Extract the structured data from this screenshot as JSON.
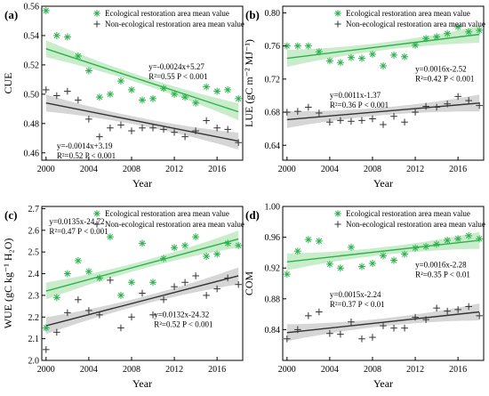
{
  "chart_data": [
    {
      "type": "scatter",
      "panel": "(a)",
      "xlabel": "Year",
      "ylabel": "CUE",
      "xlim": [
        1999.6,
        2018.4
      ],
      "ylim": [
        0.455,
        0.56
      ],
      "xticks": [
        2000,
        2004,
        2008,
        2012,
        2016
      ],
      "yticks": [
        0.46,
        0.48,
        0.5,
        0.52,
        0.54,
        0.56
      ],
      "tick_decimals": 2,
      "legend_position": "top-right",
      "series": [
        {
          "name": "Ecological restoration area mean value",
          "marker": "asterisk",
          "x": [
            2000,
            2001,
            2002,
            2003,
            2004,
            2005,
            2006,
            2007,
            2008,
            2009,
            2010,
            2011,
            2012,
            2013,
            2014,
            2015,
            2016,
            2017,
            2018
          ],
          "y": [
            0.557,
            0.54,
            0.539,
            0.526,
            0.516,
            0.498,
            0.5,
            0.509,
            0.503,
            0.496,
            0.497,
            0.504,
            0.5,
            0.498,
            0.494,
            0.505,
            0.502,
            0.503,
            0.497
          ],
          "fit_label": [
            "y=-0.0024x+5.27",
            "R²=0.55  P < 0.001"
          ],
          "fit_range": [
            2000,
            2018
          ],
          "fit_y": [
            0.531,
            0.488
          ]
        },
        {
          "name": "Non-ecological restoration area mean value",
          "marker": "plus",
          "x": [
            2000,
            2001,
            2002,
            2003,
            2004,
            2005,
            2006,
            2007,
            2008,
            2009,
            2010,
            2011,
            2012,
            2013,
            2014,
            2015,
            2016,
            2017,
            2018
          ],
          "y": [
            0.503,
            0.499,
            0.502,
            0.496,
            0.483,
            0.471,
            0.477,
            0.479,
            0.475,
            0.477,
            0.477,
            0.476,
            0.474,
            0.471,
            0.475,
            0.482,
            0.477,
            0.476,
            0.467
          ],
          "fit_label": [
            "y=-0.0014x+3.19",
            "R²=0.52  P < 0.001"
          ],
          "fit_range": [
            2000,
            2018
          ],
          "fit_y": [
            0.494,
            0.468
          ]
        }
      ],
      "eq_positions": [
        [
          2009.6,
          0.517
        ],
        [
          2001.0,
          0.463
        ]
      ]
    },
    {
      "type": "scatter",
      "panel": "(b)",
      "xlabel": "Year",
      "ylabel": "LUE (gC m⁻² MJ⁻¹)",
      "xlim": [
        1999.6,
        2018.4
      ],
      "ylim": [
        0.622,
        0.808
      ],
      "xticks": [
        2000,
        2004,
        2008,
        2012,
        2016
      ],
      "yticks": [
        0.64,
        0.68,
        0.72,
        0.76,
        0.8
      ],
      "tick_decimals": 2,
      "legend_position": "top-right",
      "series": [
        {
          "name": "Ecological restoration area mean value",
          "marker": "asterisk",
          "x": [
            2000,
            2001,
            2002,
            2003,
            2004,
            2005,
            2006,
            2007,
            2008,
            2009,
            2010,
            2011,
            2012,
            2013,
            2014,
            2015,
            2016,
            2017,
            2018
          ],
          "y": [
            0.76,
            0.76,
            0.76,
            0.753,
            0.742,
            0.74,
            0.746,
            0.745,
            0.75,
            0.736,
            0.749,
            0.747,
            0.761,
            0.769,
            0.771,
            0.775,
            0.783,
            0.777,
            0.779
          ],
          "fit_label": [
            "y=0.0016x-2.52",
            "R²=0.42  P < 0.001"
          ],
          "fit_range": [
            2000,
            2018
          ],
          "fit_y": [
            0.745,
            0.774
          ]
        },
        {
          "name": "Non-ecological restoration area mean value",
          "marker": "plus",
          "x": [
            2000,
            2001,
            2002,
            2003,
            2004,
            2005,
            2006,
            2007,
            2008,
            2009,
            2010,
            2011,
            2012,
            2013,
            2014,
            2015,
            2016,
            2017,
            2018
          ],
          "y": [
            0.68,
            0.681,
            0.686,
            0.679,
            0.668,
            0.67,
            0.669,
            0.67,
            0.672,
            0.665,
            0.675,
            0.668,
            0.68,
            0.687,
            0.686,
            0.69,
            0.699,
            0.694,
            0.688
          ],
          "fit_label": [
            "y=0.0011x-1.37",
            "R²=0.36  P < 0.001"
          ],
          "fit_range": [
            2000,
            2018
          ],
          "fit_y": [
            0.671,
            0.691
          ]
        }
      ],
      "eq_positions": [
        [
          2012.0,
          0.729
        ],
        [
          2004.0,
          0.697
        ]
      ]
    },
    {
      "type": "scatter",
      "panel": "(c)",
      "xlabel": "Year",
      "ylabel": "WUE (gC kg⁻¹ H₂O)",
      "xlim": [
        1999.6,
        2018.4
      ],
      "ylim": [
        2.0,
        2.71
      ],
      "xticks": [
        2000,
        2004,
        2008,
        2012,
        2016
      ],
      "yticks": [
        2.0,
        2.1,
        2.2,
        2.3,
        2.4,
        2.5,
        2.6,
        2.7
      ],
      "tick_decimals": 1,
      "legend_position": "top-right",
      "series": [
        {
          "name": "Ecological restoration area mean value",
          "marker": "asterisk",
          "x": [
            2000,
            2001,
            2002,
            2003,
            2004,
            2005,
            2006,
            2007,
            2008,
            2009,
            2010,
            2011,
            2012,
            2013,
            2014,
            2015,
            2016,
            2017,
            2018
          ],
          "y": [
            2.15,
            2.29,
            2.4,
            2.46,
            2.41,
            2.38,
            2.57,
            2.3,
            2.36,
            2.54,
            2.36,
            2.47,
            2.52,
            2.53,
            2.57,
            2.48,
            2.49,
            2.54,
            2.53
          ],
          "fit_label": [
            "y=0.0135x-24.72",
            "R²=0.47  P < 0.001"
          ],
          "fit_range": [
            2000,
            2018
          ],
          "fit_y": [
            2.32,
            2.56
          ]
        },
        {
          "name": "Non-ecological restoration area mean value",
          "marker": "plus",
          "x": [
            2000,
            2001,
            2002,
            2003,
            2004,
            2005,
            2006,
            2007,
            2008,
            2009,
            2010,
            2011,
            2012,
            2013,
            2014,
            2015,
            2016,
            2017,
            2018
          ],
          "y": [
            2.05,
            2.13,
            2.22,
            2.28,
            2.23,
            2.21,
            2.37,
            2.15,
            2.2,
            2.31,
            2.21,
            2.28,
            2.34,
            2.36,
            2.39,
            2.3,
            2.33,
            2.38,
            2.35
          ],
          "fit_label": [
            "y=0.0132x-24.32",
            "R²=0.52  P < 0.001"
          ],
          "fit_range": [
            2000,
            2018
          ],
          "fit_y": [
            2.16,
            2.39
          ]
        }
      ],
      "eq_positions": [
        [
          2000.3,
          2.628
        ],
        [
          2010.1,
          2.199
        ]
      ]
    },
    {
      "type": "scatter",
      "panel": "(d)",
      "xlabel": "Year",
      "ylabel": "COM",
      "xlim": [
        1999.6,
        2018.4
      ],
      "ylim": [
        0.8,
        1.0
      ],
      "xticks": [
        2000,
        2004,
        2008,
        2012,
        2016
      ],
      "yticks": [
        0.84,
        0.88,
        0.92,
        0.96,
        1.0
      ],
      "tick_decimals": 2,
      "legend_position": "top-right",
      "series": [
        {
          "name": "Ecological restoration area mean value",
          "marker": "asterisk",
          "x": [
            2000,
            2001,
            2002,
            2003,
            2004,
            2005,
            2006,
            2007,
            2008,
            2009,
            2010,
            2011,
            2012,
            2013,
            2014,
            2015,
            2016,
            2017,
            2018
          ],
          "y": [
            0.912,
            0.942,
            0.957,
            0.955,
            0.925,
            0.92,
            0.947,
            0.922,
            0.926,
            0.936,
            0.93,
            0.938,
            0.946,
            0.948,
            0.951,
            0.956,
            0.958,
            0.962,
            0.958
          ],
          "fit_label": [
            "y=0.0016x-2.28",
            "R²=0.35  P < 0.01"
          ],
          "fit_range": [
            2000,
            2018
          ],
          "fit_y": [
            0.928,
            0.956
          ]
        },
        {
          "name": "Non-ecological restoration area mean value",
          "marker": "plus",
          "x": [
            2000,
            2001,
            2002,
            2003,
            2004,
            2005,
            2006,
            2007,
            2008,
            2009,
            2010,
            2011,
            2012,
            2013,
            2014,
            2015,
            2016,
            2017,
            2018
          ],
          "y": [
            0.828,
            0.84,
            0.858,
            0.863,
            0.835,
            0.834,
            0.85,
            0.828,
            0.83,
            0.845,
            0.842,
            0.842,
            0.856,
            0.853,
            0.868,
            0.864,
            0.866,
            0.87,
            0.858
          ],
          "fit_label": [
            "y=0.0015x-2.24",
            "R²=0.37  P < 0.01"
          ],
          "fit_range": [
            2000,
            2018
          ],
          "fit_y": [
            0.836,
            0.863
          ]
        }
      ],
      "eq_positions": [
        [
          2012.0,
          0.921
        ],
        [
          2004.0,
          0.882
        ]
      ]
    }
  ],
  "colors": {
    "eco": "#2bb24c",
    "eco_band": "#bfe9c2",
    "noneco": "#333333",
    "noneco_band": "#cfcfcf"
  }
}
